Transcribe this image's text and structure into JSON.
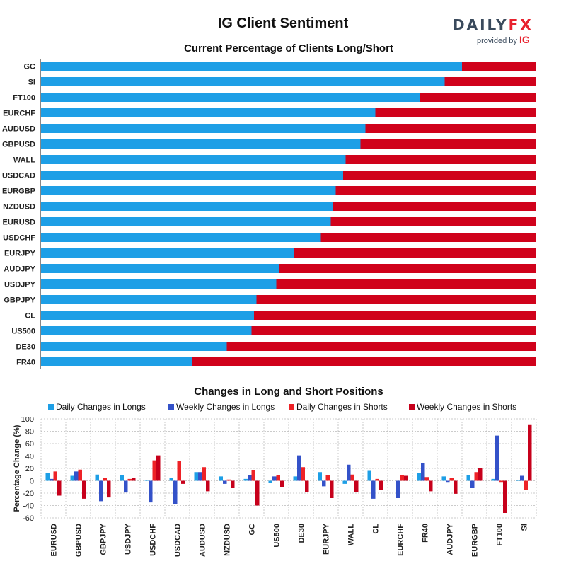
{
  "title": "IG Client Sentiment",
  "logo": {
    "text_main": "DAILY",
    "text_fx": "FX",
    "provided_by": "provided by",
    "ig": "IG"
  },
  "colors": {
    "long": "#1e9fe6",
    "short": "#d0021b",
    "weekly_long": "#3452c9",
    "daily_short": "#ee2227",
    "weekly_short": "#c7001b",
    "grid": "#bbbbbb"
  },
  "chart_data": [
    {
      "type": "bar",
      "orientation": "horizontal-stacked",
      "title": "Current Percentage of Clients Long/Short",
      "categories": [
        "GC",
        "SI",
        "FT100",
        "EURCHF",
        "AUDUSD",
        "GBPUSD",
        "WALL",
        "USDCAD",
        "EURGBP",
        "NZDUSD",
        "EURUSD",
        "USDCHF",
        "EURJPY",
        "AUDJPY",
        "USDJPY",
        "GBPJPY",
        "CL",
        "US500",
        "DE30",
        "FR40"
      ],
      "series": [
        {
          "values": [
            85,
            81.5,
            76.5,
            67.5,
            65.5,
            64.5,
            61.5,
            61,
            59.5,
            59,
            58.5,
            56.5,
            51,
            48,
            47.5,
            43.5,
            43,
            42.5,
            37.5,
            30.5
          ]
        },
        {
          "values": [
            15,
            18.5,
            23.5,
            32.5,
            34.5,
            35.5,
            38.5,
            39,
            40.5,
            41,
            41.5,
            43.5,
            49,
            52,
            52.5,
            56.5,
            57,
            57.5,
            62.5,
            69.5
          ]
        }
      ]
    },
    {
      "type": "bar",
      "title": "Changes in Long and Short Positions",
      "ylabel": "Percentage Change (%)",
      "ylim": [
        -60,
        100
      ],
      "yticks": [
        100,
        80,
        60,
        40,
        20,
        0,
        -20,
        -40,
        -60
      ],
      "grid": true,
      "legend_position": "top",
      "categories": [
        "EURUSD",
        "GBPUSD",
        "GBPJPY",
        "USDJPY",
        "USDCHF",
        "USDCAD",
        "AUDUSD",
        "NZDUSD",
        "GC",
        "US500",
        "DE30",
        "EURJPY",
        "WALL",
        "CL",
        "EURCHF",
        "FR40",
        "AUDJPY",
        "EURGBP",
        "FT100",
        "SI"
      ],
      "series": [
        {
          "name": "Daily Changes in Longs",
          "values": [
            13,
            8,
            10,
            9,
            1,
            4,
            14,
            7,
            3,
            -3,
            7,
            14,
            -5,
            16,
            0,
            12,
            7,
            9,
            3,
            1
          ]
        },
        {
          "name": "Weekly Changes in Longs",
          "values": [
            3,
            15,
            -33,
            -19,
            -35,
            -38,
            14,
            -5,
            9,
            7,
            41,
            -9,
            26,
            -29,
            -28,
            28,
            -2,
            -12,
            73,
            8
          ]
        },
        {
          "name": "Daily Changes in Shorts",
          "values": [
            15,
            18,
            5,
            3,
            33,
            32,
            22,
            2,
            17,
            9,
            22,
            9,
            10,
            3,
            9,
            6,
            5,
            14,
            -2,
            -15
          ]
        },
        {
          "name": "Weekly Changes in Shorts",
          "values": [
            -24,
            -29,
            -27,
            5,
            41,
            -5,
            -17,
            -12,
            -40,
            -10,
            -18,
            -28,
            -18,
            -15,
            8,
            -17,
            -21,
            21,
            -52,
            90
          ]
        }
      ]
    }
  ]
}
